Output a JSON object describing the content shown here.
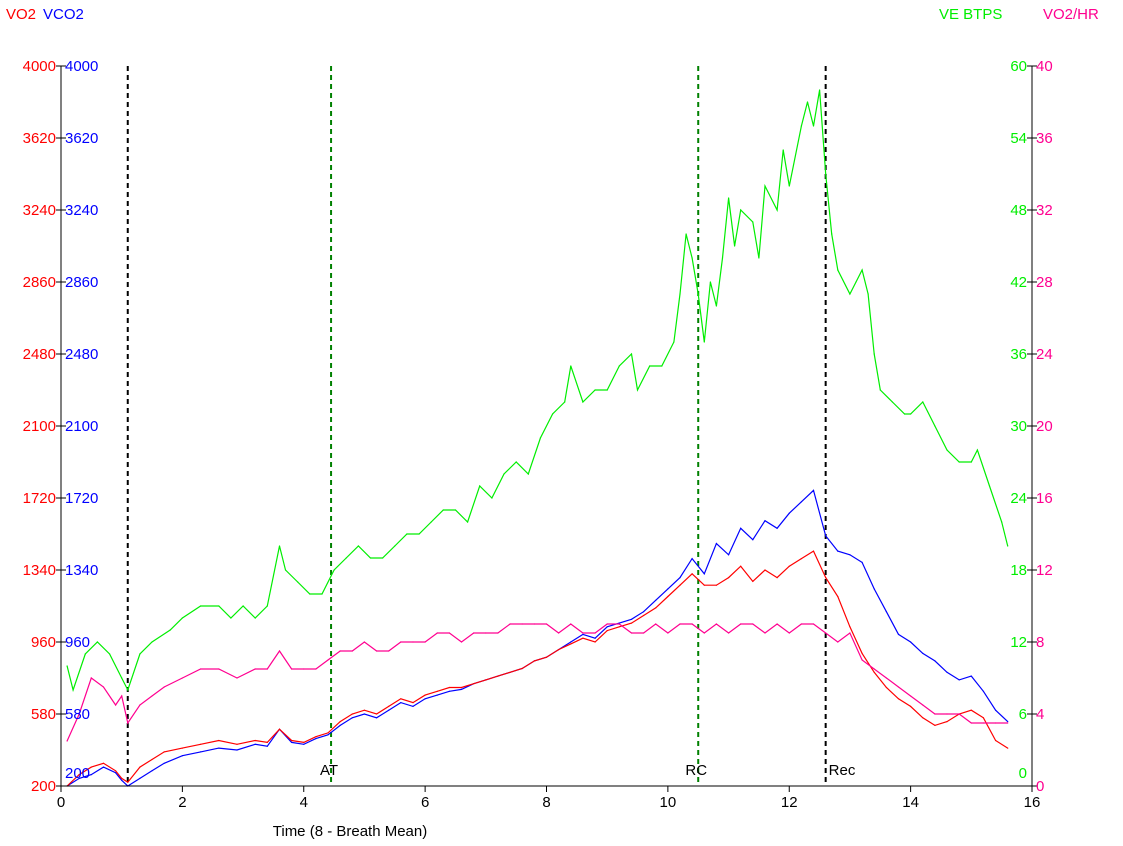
{
  "legend": {
    "vo2": {
      "text": "VO2",
      "color": "#ff0000"
    },
    "vco2": {
      "text": "VCO2",
      "color": "#0000ff"
    },
    "ve": {
      "text": "VE BTPS",
      "color": "#00ee00"
    },
    "vo2hr": {
      "text": "VO2/HR",
      "color": "#ff0090"
    }
  },
  "chart_data": {
    "type": "line",
    "xlabel": "Time (8 - Breath Mean)",
    "xlim": [
      0,
      16
    ],
    "xticks": [
      0,
      2,
      4,
      6,
      8,
      10,
      12,
      14,
      16
    ],
    "axes": {
      "vo2": {
        "ylim": [
          200,
          4000
        ],
        "ticks": [
          200,
          580,
          960,
          1340,
          1720,
          2100,
          2480,
          2860,
          3240,
          3620,
          4000
        ],
        "color": "#ff0000"
      },
      "vco2": {
        "ylim": [
          200,
          4000
        ],
        "ticks": [
          200,
          580,
          960,
          1340,
          1720,
          2100,
          2480,
          2860,
          3240,
          3620,
          4000
        ],
        "color": "#0000ff"
      },
      "ve": {
        "ylim": [
          0,
          60
        ],
        "ticks": [
          0,
          6,
          12,
          18,
          24,
          30,
          36,
          42,
          48,
          54,
          60
        ],
        "color": "#00ee00"
      },
      "vo2hr": {
        "ylim": [
          0,
          40
        ],
        "ticks": [
          0,
          4,
          8,
          12,
          16,
          20,
          24,
          28,
          32,
          36,
          40
        ],
        "color": "#ff0090"
      }
    },
    "markers": [
      {
        "x": 1.1,
        "label": "",
        "color": "#000000"
      },
      {
        "x": 4.45,
        "label": "AT",
        "color": "#008000"
      },
      {
        "x": 10.5,
        "label": "RC",
        "color": "#008000"
      },
      {
        "x": 12.6,
        "label": "Rec",
        "color": "#000000"
      }
    ],
    "series": [
      {
        "name": "VE BTPS",
        "axis": "ve",
        "color": "#00ee00",
        "x": [
          0.1,
          0.2,
          0.4,
          0.6,
          0.8,
          1.0,
          1.1,
          1.3,
          1.5,
          1.8,
          2.0,
          2.3,
          2.6,
          2.8,
          3.0,
          3.2,
          3.4,
          3.6,
          3.7,
          3.9,
          4.1,
          4.3,
          4.5,
          4.7,
          4.9,
          5.1,
          5.3,
          5.5,
          5.7,
          5.9,
          6.1,
          6.3,
          6.5,
          6.7,
          6.9,
          7.1,
          7.3,
          7.5,
          7.7,
          7.9,
          8.1,
          8.3,
          8.4,
          8.6,
          8.8,
          9.0,
          9.2,
          9.4,
          9.5,
          9.7,
          9.9,
          10.1,
          10.2,
          10.3,
          10.4,
          10.5,
          10.6,
          10.7,
          10.8,
          10.9,
          11.0,
          11.1,
          11.2,
          11.4,
          11.5,
          11.6,
          11.8,
          11.9,
          12.0,
          12.2,
          12.3,
          12.4,
          12.5,
          12.6,
          12.7,
          12.8,
          13.0,
          13.1,
          13.2,
          13.3,
          13.4,
          13.5,
          13.7,
          13.9,
          14.0,
          14.2,
          14.4,
          14.6,
          14.8,
          15.0,
          15.1,
          15.3,
          15.5,
          15.6
        ],
        "y": [
          10,
          8,
          11,
          12,
          11,
          9,
          8,
          11,
          12,
          13,
          14,
          15,
          15,
          14,
          15,
          14,
          15,
          20,
          18,
          17,
          16,
          16,
          18,
          19,
          20,
          19,
          19,
          20,
          21,
          21,
          22,
          23,
          23,
          22,
          25,
          24,
          26,
          27,
          26,
          29,
          31,
          32,
          35,
          32,
          33,
          33,
          35,
          36,
          33,
          35,
          35,
          37,
          41,
          46,
          44,
          41,
          37,
          42,
          40,
          44,
          49,
          45,
          48,
          47,
          44,
          50,
          48,
          53,
          50,
          55,
          57,
          55,
          58,
          51,
          46,
          43,
          41,
          42,
          43,
          41,
          36,
          33,
          32,
          31,
          31,
          32,
          30,
          28,
          27,
          27,
          28,
          25,
          22,
          20
        ]
      },
      {
        "name": "VCO2",
        "axis": "vco2",
        "color": "#0000ff",
        "x": [
          0.1,
          0.3,
          0.5,
          0.7,
          0.9,
          1.0,
          1.1,
          1.3,
          1.5,
          1.7,
          2.0,
          2.3,
          2.6,
          2.9,
          3.2,
          3.4,
          3.6,
          3.8,
          4.0,
          4.2,
          4.4,
          4.6,
          4.8,
          5.0,
          5.2,
          5.4,
          5.6,
          5.8,
          6.0,
          6.2,
          6.4,
          6.6,
          6.8,
          7.0,
          7.2,
          7.4,
          7.6,
          7.8,
          8.0,
          8.2,
          8.4,
          8.6,
          8.8,
          9.0,
          9.2,
          9.4,
          9.6,
          9.8,
          10.0,
          10.2,
          10.4,
          10.6,
          10.8,
          11.0,
          11.2,
          11.4,
          11.6,
          11.8,
          12.0,
          12.2,
          12.4,
          12.6,
          12.8,
          13.0,
          13.2,
          13.4,
          13.6,
          13.8,
          14.0,
          14.2,
          14.4,
          14.6,
          14.8,
          15.0,
          15.2,
          15.4,
          15.6
        ],
        "y": [
          200,
          240,
          260,
          300,
          270,
          230,
          200,
          240,
          280,
          320,
          360,
          380,
          400,
          390,
          420,
          410,
          500,
          430,
          420,
          450,
          470,
          520,
          560,
          580,
          560,
          600,
          640,
          620,
          660,
          680,
          700,
          710,
          740,
          760,
          780,
          800,
          820,
          860,
          880,
          920,
          960,
          1000,
          980,
          1040,
          1060,
          1080,
          1120,
          1180,
          1240,
          1300,
          1400,
          1320,
          1480,
          1420,
          1560,
          1500,
          1600,
          1560,
          1640,
          1700,
          1760,
          1520,
          1440,
          1420,
          1380,
          1240,
          1120,
          1000,
          960,
          900,
          860,
          800,
          760,
          780,
          700,
          600,
          540
        ]
      },
      {
        "name": "VO2",
        "axis": "vo2",
        "color": "#ff0000",
        "x": [
          0.1,
          0.3,
          0.5,
          0.7,
          0.9,
          1.0,
          1.1,
          1.3,
          1.5,
          1.7,
          2.0,
          2.3,
          2.6,
          2.9,
          3.2,
          3.4,
          3.6,
          3.8,
          4.0,
          4.2,
          4.4,
          4.6,
          4.8,
          5.0,
          5.2,
          5.4,
          5.6,
          5.8,
          6.0,
          6.2,
          6.4,
          6.6,
          6.8,
          7.0,
          7.2,
          7.4,
          7.6,
          7.8,
          8.0,
          8.2,
          8.4,
          8.6,
          8.8,
          9.0,
          9.2,
          9.4,
          9.6,
          9.8,
          10.0,
          10.2,
          10.4,
          10.6,
          10.8,
          11.0,
          11.2,
          11.4,
          11.6,
          11.8,
          12.0,
          12.2,
          12.4,
          12.6,
          12.8,
          13.0,
          13.2,
          13.4,
          13.6,
          13.8,
          14.0,
          14.2,
          14.4,
          14.6,
          14.8,
          15.0,
          15.2,
          15.4,
          15.6
        ],
        "y": [
          200,
          260,
          300,
          320,
          280,
          240,
          220,
          300,
          340,
          380,
          400,
          420,
          440,
          420,
          440,
          430,
          500,
          440,
          430,
          460,
          480,
          540,
          580,
          600,
          580,
          620,
          660,
          640,
          680,
          700,
          720,
          720,
          740,
          760,
          780,
          800,
          820,
          860,
          880,
          920,
          950,
          980,
          960,
          1020,
          1040,
          1060,
          1100,
          1140,
          1200,
          1260,
          1320,
          1260,
          1260,
          1300,
          1360,
          1280,
          1340,
          1300,
          1360,
          1400,
          1440,
          1300,
          1200,
          1040,
          900,
          800,
          720,
          660,
          620,
          560,
          520,
          540,
          580,
          600,
          560,
          440,
          400
        ]
      },
      {
        "name": "VO2/HR",
        "axis": "vo2hr",
        "color": "#ff0090",
        "x": [
          0.1,
          0.3,
          0.5,
          0.7,
          0.9,
          1.0,
          1.1,
          1.3,
          1.5,
          1.7,
          2.0,
          2.3,
          2.6,
          2.9,
          3.2,
          3.4,
          3.6,
          3.8,
          4.0,
          4.2,
          4.4,
          4.6,
          4.8,
          5.0,
          5.2,
          5.4,
          5.6,
          5.8,
          6.0,
          6.2,
          6.4,
          6.6,
          6.8,
          7.0,
          7.2,
          7.4,
          7.6,
          7.8,
          8.0,
          8.2,
          8.4,
          8.6,
          8.8,
          9.0,
          9.2,
          9.4,
          9.6,
          9.8,
          10.0,
          10.2,
          10.4,
          10.6,
          10.8,
          11.0,
          11.2,
          11.4,
          11.6,
          11.8,
          12.0,
          12.2,
          12.4,
          12.6,
          12.8,
          13.0,
          13.2,
          13.4,
          13.6,
          13.8,
          14.0,
          14.2,
          14.4,
          14.6,
          14.8,
          15.0,
          15.2,
          15.4,
          15.6
        ],
        "y": [
          2.5,
          4,
          6,
          5.5,
          4.5,
          5,
          3.5,
          4.5,
          5,
          5.5,
          6,
          6.5,
          6.5,
          6,
          6.5,
          6.5,
          7.5,
          6.5,
          6.5,
          6.5,
          7,
          7.5,
          7.5,
          8,
          7.5,
          7.5,
          8,
          8,
          8,
          8.5,
          8.5,
          8,
          8.5,
          8.5,
          8.5,
          9,
          9,
          9,
          9,
          8.5,
          9,
          8.5,
          8.5,
          9,
          9,
          8.5,
          8.5,
          9,
          8.5,
          9,
          9,
          8.5,
          9,
          8.5,
          9,
          9,
          8.5,
          9,
          8.5,
          9,
          9,
          8.5,
          8,
          8.5,
          7,
          6.5,
          6,
          5.5,
          5,
          4.5,
          4,
          4,
          4,
          3.5,
          3.5,
          3.5,
          3.5
        ]
      }
    ]
  }
}
